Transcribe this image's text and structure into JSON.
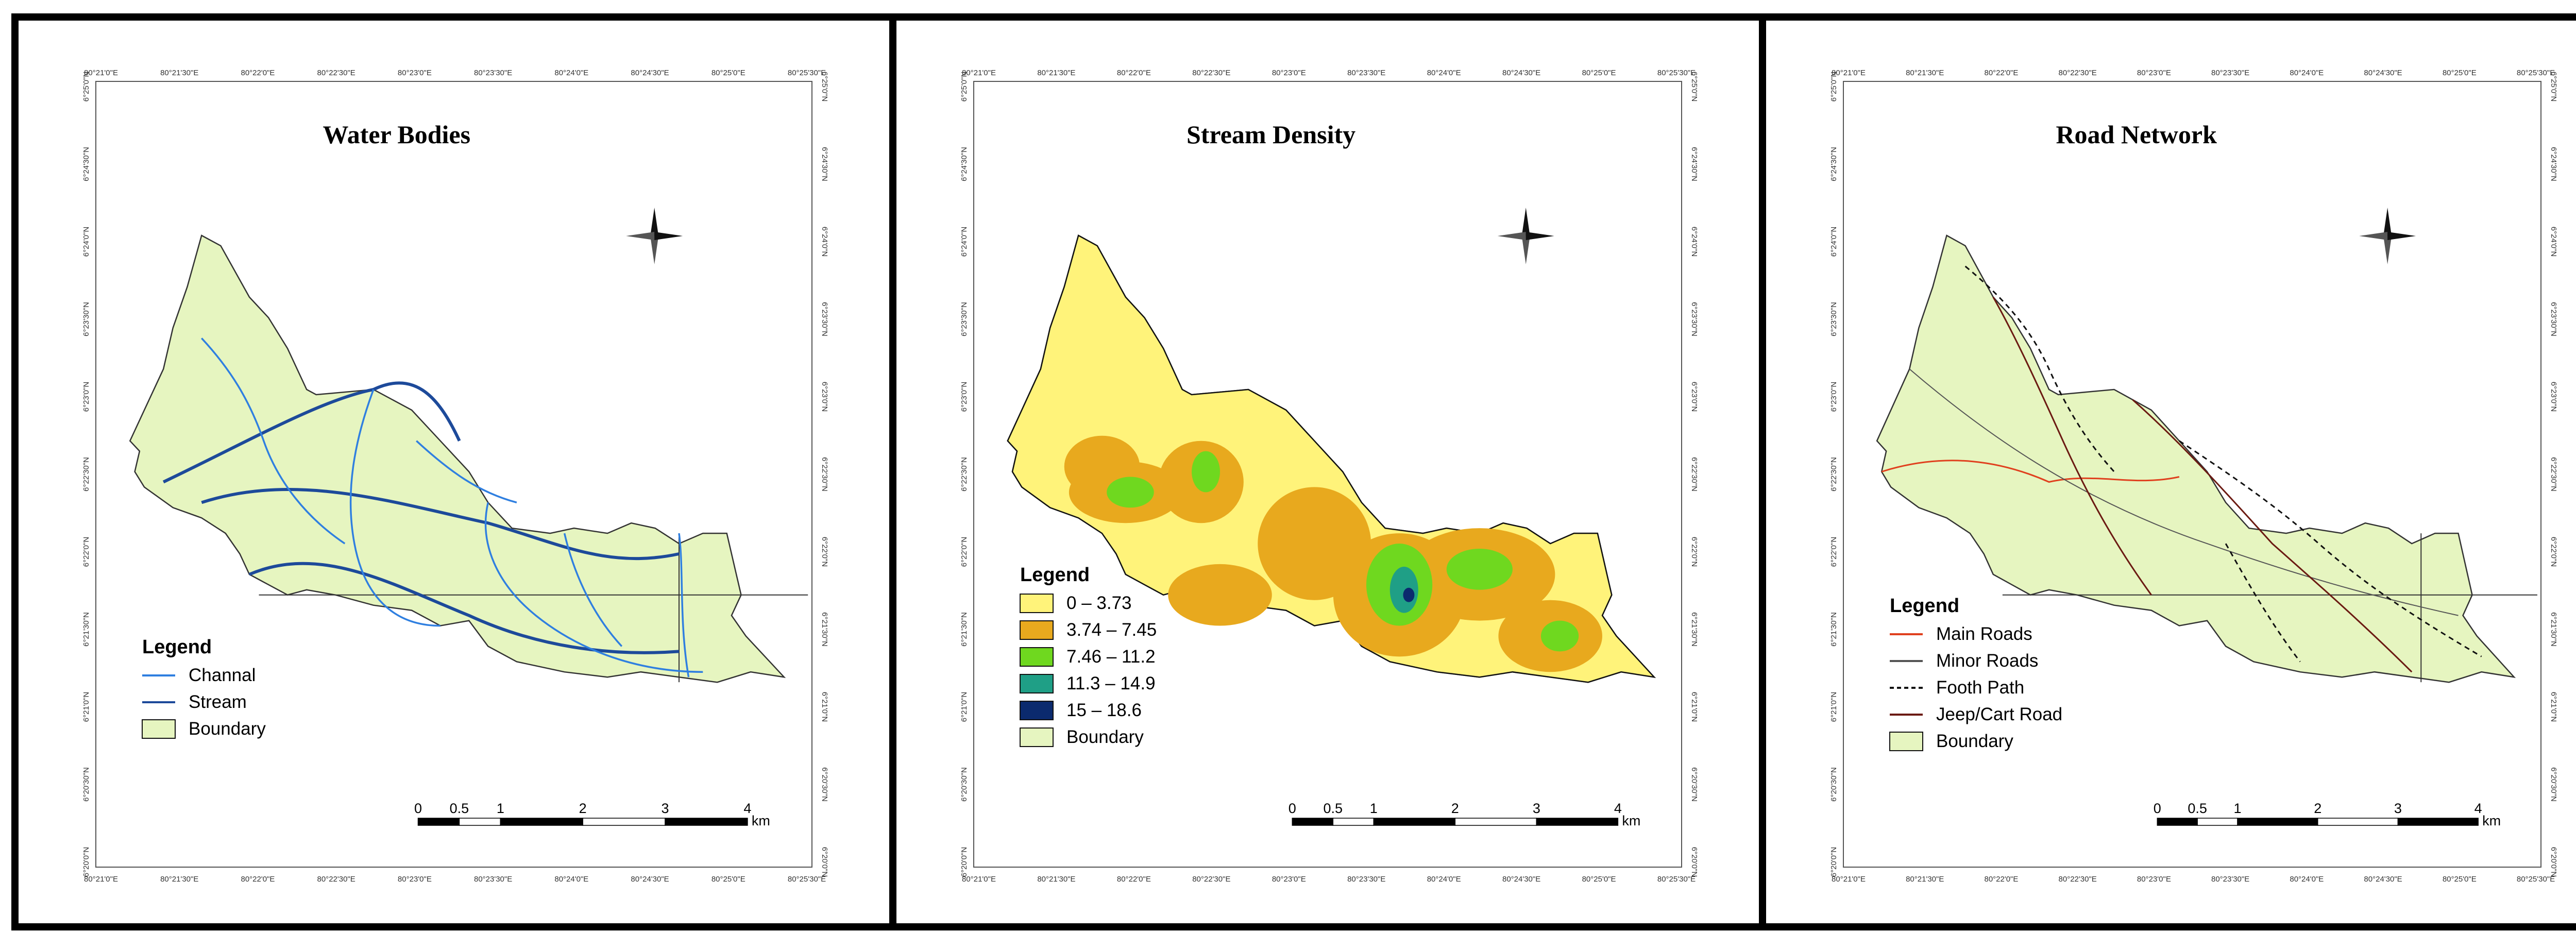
{
  "panels": [
    {
      "title": "Water Bodies",
      "legend_title": "Legend",
      "legend_items": [
        {
          "label": "Channal",
          "kind": "line",
          "color": "#2f7fe0",
          "dash": false
        },
        {
          "label": "Stream",
          "kind": "line",
          "color": "#1d4a9a",
          "dash": false
        },
        {
          "label": "Boundary",
          "kind": "patch",
          "color": "#e6f5c0"
        }
      ],
      "scale_labels": [
        "0",
        "0.5",
        "1",
        "2",
        "3",
        "4"
      ],
      "scale_unit": "km",
      "x_ticks": [
        "80°21'0\"E",
        "80°21'30\"E",
        "80°22'0\"E",
        "80°22'30\"E",
        "80°23'0\"E",
        "80°23'30\"E",
        "80°24'0\"E",
        "80°24'30\"E",
        "80°25'0\"E",
        "80°25'30\"E"
      ],
      "y_ticks": [
        "6°25'0\"N",
        "6°24'30\"N",
        "6°24'0\"N",
        "6°23'30\"N",
        "6°23'0\"N",
        "6°22'30\"N",
        "6°22'0\"N",
        "6°21'30\"N",
        "6°21'0\"N",
        "6°20'30\"N",
        "6°20'0\"N"
      ]
    },
    {
      "title": "Stream Density",
      "legend_title": "Legend",
      "legend_items": [
        {
          "label": "0 – 3.73",
          "kind": "patch",
          "color": "#fff37a"
        },
        {
          "label": "3.74 – 7.45",
          "kind": "patch",
          "color": "#e8a91e"
        },
        {
          "label": "7.46 – 11.2",
          "kind": "patch",
          "color": "#6fd81f"
        },
        {
          "label": "11.3 – 14.9",
          "kind": "patch",
          "color": "#1f9f86"
        },
        {
          "label": "15 – 18.6",
          "kind": "patch",
          "color": "#0b2a6e"
        },
        {
          "label": "Boundary",
          "kind": "patch",
          "color": "#e6f5c0"
        }
      ],
      "scale_labels": [
        "0",
        "0.5",
        "1",
        "2",
        "3",
        "4"
      ],
      "scale_unit": "km",
      "x_ticks": [
        "80°21'0\"E",
        "80°21'30\"E",
        "80°22'0\"E",
        "80°22'30\"E",
        "80°23'0\"E",
        "80°23'30\"E",
        "80°24'0\"E",
        "80°24'30\"E",
        "80°25'0\"E",
        "80°25'30\"E"
      ],
      "y_ticks": [
        "6°25'0\"N",
        "6°24'30\"N",
        "6°24'0\"N",
        "6°23'30\"N",
        "6°23'0\"N",
        "6°22'30\"N",
        "6°22'0\"N",
        "6°21'30\"N",
        "6°21'0\"N",
        "6°20'30\"N",
        "6°20'0\"N"
      ]
    },
    {
      "title": "Road Network",
      "legend_title": "Legend",
      "legend_items": [
        {
          "label": "Main Roads",
          "kind": "line",
          "color": "#e0401e",
          "dash": false
        },
        {
          "label": "Minor Roads",
          "kind": "line",
          "color": "#555555",
          "dash": false
        },
        {
          "label": "Footh Path",
          "kind": "line",
          "color": "#111111",
          "dash": true
        },
        {
          "label": "Jeep/Cart Road",
          "kind": "line",
          "color": "#6b1a12",
          "dash": false
        },
        {
          "label": "Boundary",
          "kind": "patch",
          "color": "#e6f5c0"
        }
      ],
      "scale_labels": [
        "0",
        "0.5",
        "1",
        "2",
        "3",
        "4"
      ],
      "scale_unit": "km",
      "x_ticks": [
        "80°21'0\"E",
        "80°21'30\"E",
        "80°22'0\"E",
        "80°22'30\"E",
        "80°23'0\"E",
        "80°23'30\"E",
        "80°24'0\"E",
        "80°24'30\"E",
        "80°25'0\"E",
        "80°25'30\"E"
      ],
      "y_ticks": [
        "6°25'0\"N",
        "6°24'30\"N",
        "6°24'0\"N",
        "6°23'30\"N",
        "6°23'0\"N",
        "6°22'30\"N",
        "6°22'0\"N",
        "6°21'30\"N",
        "6°21'0\"N",
        "6°20'30\"N",
        "6°20'0\"N"
      ]
    }
  ],
  "colors": {
    "boundary_fill": "#e6f5c0",
    "boundary_stroke": "#333333",
    "frame": "#000000"
  }
}
